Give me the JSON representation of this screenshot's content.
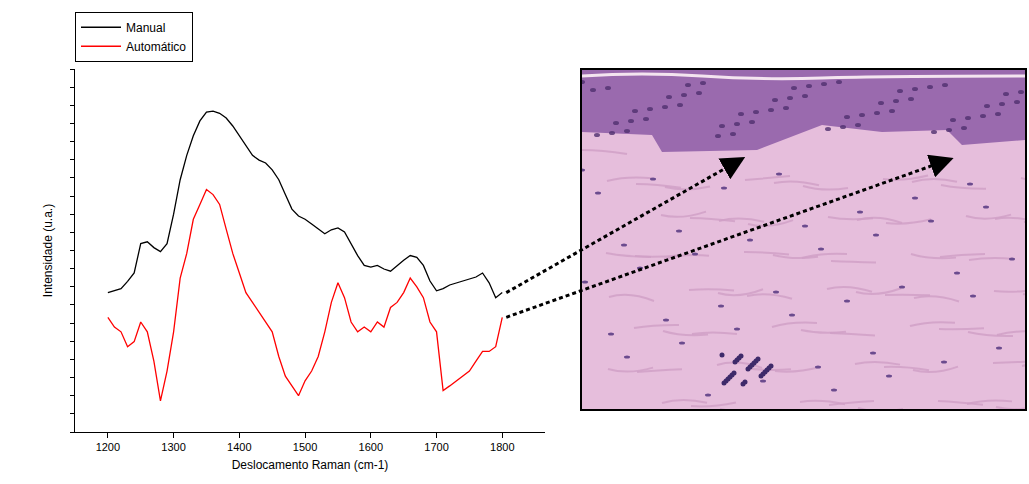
{
  "chart_data": {
    "type": "line",
    "xlabel": "Deslocamento Raman (cm-1)",
    "ylabel": "Intensidade (u.a.)",
    "x": [
      1200,
      1210,
      1220,
      1230,
      1240,
      1250,
      1260,
      1270,
      1280,
      1290,
      1300,
      1310,
      1320,
      1330,
      1340,
      1350,
      1360,
      1370,
      1380,
      1390,
      1400,
      1410,
      1420,
      1430,
      1440,
      1450,
      1460,
      1470,
      1480,
      1490,
      1500,
      1510,
      1520,
      1530,
      1540,
      1550,
      1560,
      1570,
      1580,
      1590,
      1600,
      1610,
      1620,
      1630,
      1640,
      1650,
      1660,
      1670,
      1680,
      1690,
      1700,
      1710,
      1720,
      1730,
      1740,
      1750,
      1760,
      1770,
      1780,
      1790,
      1800
    ],
    "series": [
      {
        "name": "Manual",
        "color": "#000000",
        "values": [
          38.4,
          39.0,
          39.5,
          41.5,
          43.8,
          51.9,
          52.4,
          50.8,
          49.7,
          51.9,
          60.0,
          69.5,
          76.2,
          81.6,
          85.7,
          88.1,
          88.4,
          87.8,
          86.5,
          84.3,
          81.6,
          78.9,
          76.2,
          74.9,
          74.1,
          72.2,
          69.5,
          65.4,
          61.4,
          59.5,
          58.6,
          57.3,
          55.9,
          54.6,
          55.7,
          56.2,
          55.1,
          51.9,
          48.6,
          45.9,
          45.4,
          45.9,
          44.9,
          44.3,
          45.9,
          47.3,
          48.6,
          48.1,
          45.9,
          41.6,
          38.9,
          39.5,
          40.5,
          41.1,
          41.6,
          42.2,
          42.7,
          43.8,
          41.1,
          37.0,
          38.4
        ]
      },
      {
        "name": "Automático",
        "color": "#ff0000",
        "values": [
          31.6,
          28.9,
          27.6,
          23.5,
          24.9,
          30.3,
          27.6,
          19.5,
          8.6,
          16.8,
          27.6,
          42.4,
          49.2,
          58.6,
          62.7,
          66.8,
          65.4,
          62.7,
          55.9,
          49.2,
          43.8,
          38.4,
          35.7,
          33.0,
          30.3,
          27.6,
          20.8,
          15.4,
          12.7,
          10.0,
          14.1,
          16.8,
          20.8,
          27.6,
          35.7,
          41.1,
          37.0,
          30.3,
          27.6,
          28.9,
          27.6,
          30.3,
          28.9,
          34.3,
          35.7,
          38.4,
          42.4,
          40.0,
          37.0,
          30.3,
          27.6,
          11.4,
          12.7,
          14.1,
          15.4,
          16.8,
          19.5,
          22.2,
          22.2,
          23.5,
          31.6
        ]
      }
    ],
    "xlim": [
      1150,
      1865
    ],
    "ylim": [
      0,
      100
    ],
    "xticks": [
      1200,
      1300,
      1400,
      1500,
      1600,
      1700,
      1800
    ],
    "yticks": [
      0,
      5,
      10,
      15,
      20,
      25,
      30,
      35,
      40,
      45,
      50,
      55,
      60,
      65,
      70,
      75,
      80,
      85,
      90,
      95,
      100
    ],
    "tick_labels": "x",
    "legend": "top left",
    "grid": false
  }
}
